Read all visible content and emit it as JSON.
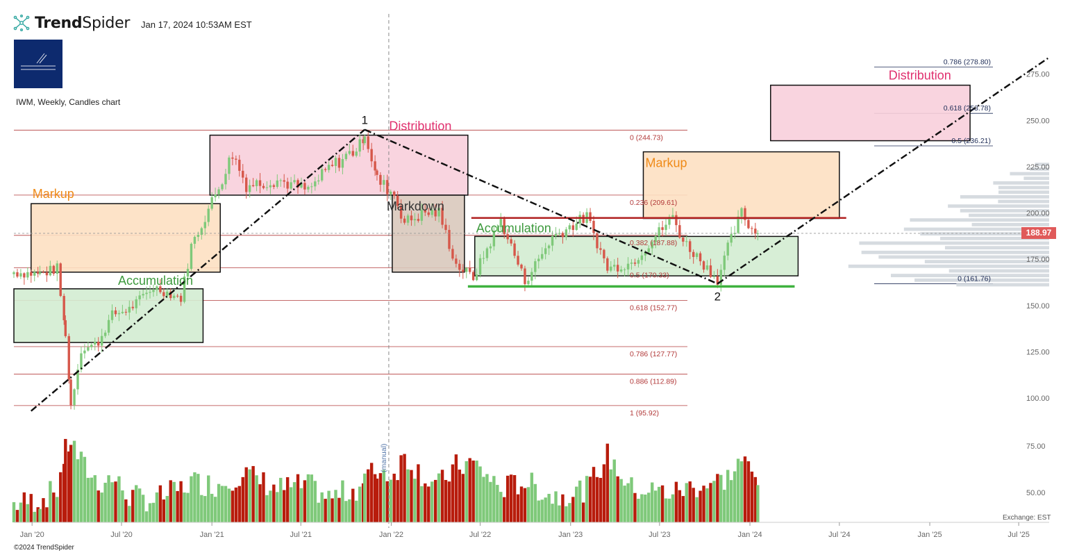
{
  "header": {
    "brand_bold": "Trend",
    "brand_light": "Spider",
    "timestamp": "Jan 17, 2024 10:53AM EST",
    "symbol_line": "IWM, Weekly, Candles chart",
    "copyright": "©2024 TrendSpider",
    "exchange": "Exchange: EST",
    "last_price": "188.97"
  },
  "colors": {
    "up": "#7fc97a",
    "down": "#b81c0c",
    "distribution_fill": "#f8cfdc",
    "markup_fill": "#fde0c2",
    "accumulation_fill": "#d3ecd2",
    "markdown_fill": "#d9c9bd",
    "fib_line": "#b23a3a",
    "fib_line_right": "#1f2d57",
    "distribution_text": "#e0306f",
    "markup_text": "#ef8a17",
    "accumulation_text": "#3d9a3d",
    "markdown_text": "#333333",
    "support": "#3fb23f",
    "resistance": "#b02020",
    "last_price_tag": "#e05a5a"
  },
  "chart_data": {
    "type": "candlestick",
    "symbol": "IWM",
    "interval": "Weekly",
    "ylim": [
      88,
      285
    ],
    "y_ticks": [
      100,
      125,
      150,
      175,
      200,
      225,
      250,
      275
    ],
    "y_tick_labels": [
      "100.00",
      "125.00",
      "150.00",
      "175.00",
      "200.00",
      "225.00",
      "250.00",
      "275.00"
    ],
    "volume_ticks": [
      50,
      75
    ],
    "volume_tick_labels": [
      "50.00",
      "75.00"
    ],
    "volume_ylim": [
      34,
      84
    ],
    "x_ticks": [
      "2020-01-01",
      "2020-07-01",
      "2021-01-01",
      "2021-07-01",
      "2022-01-01",
      "2022-07-01",
      "2023-01-01",
      "2023-07-01",
      "2024-01-01",
      "2024-07-01",
      "2025-01-01",
      "2025-07-01"
    ],
    "x_tick_labels": [
      "Jan '20",
      "Jul '20",
      "Jan '21",
      "Jul '21",
      "Jan '22",
      "Jul '22",
      "Jan '23",
      "Jul '23",
      "Jan '24",
      "Jul '24",
      "Jan '25",
      "Jul '25"
    ],
    "x_range": [
      "2019-11-25",
      "2025-09-01"
    ],
    "anchors": [
      [
        "2019-11-25",
        157,
        168,
        44
      ],
      [
        "2020-01-17",
        165,
        167,
        46
      ],
      [
        "2020-02-21",
        167,
        170,
        52
      ],
      [
        "2020-03-09",
        140,
        135,
        72
      ],
      [
        "2020-03-20",
        100,
        96,
        78
      ],
      [
        "2020-04-10",
        122,
        126,
        66
      ],
      [
        "2020-05-15",
        128,
        130,
        55
      ],
      [
        "2020-06-12",
        150,
        145,
        58
      ],
      [
        "2020-07-17",
        145,
        148,
        48
      ],
      [
        "2020-09-04",
        153,
        160,
        46
      ],
      [
        "2020-10-30",
        150,
        154,
        52
      ],
      [
        "2020-11-20",
        178,
        182,
        56
      ],
      [
        "2021-01-08",
        205,
        210,
        54
      ],
      [
        "2021-02-12",
        228,
        232,
        58
      ],
      [
        "2021-03-12",
        226,
        215,
        60
      ],
      [
        "2021-05-14",
        212,
        218,
        52
      ],
      [
        "2021-07-16",
        215,
        212,
        54
      ],
      [
        "2021-08-27",
        222,
        224,
        47
      ],
      [
        "2021-10-29",
        232,
        236,
        53
      ],
      [
        "2021-11-08",
        240,
        244,
        58
      ],
      [
        "2021-12-03",
        220,
        218,
        62
      ],
      [
        "2022-01-07",
        215,
        210,
        60
      ],
      [
        "2022-01-28",
        192,
        195,
        70
      ],
      [
        "2022-03-11",
        198,
        200,
        58
      ],
      [
        "2022-04-08",
        205,
        200,
        54
      ],
      [
        "2022-05-13",
        175,
        172,
        64
      ],
      [
        "2022-06-17",
        168,
        165,
        66
      ],
      [
        "2022-08-12",
        192,
        196,
        52
      ],
      [
        "2022-09-30",
        165,
        163,
        56
      ],
      [
        "2022-11-25",
        184,
        187,
        48
      ],
      [
        "2023-02-03",
        196,
        198,
        52
      ],
      [
        "2023-03-17",
        173,
        170,
        70
      ],
      [
        "2023-05-05",
        171,
        173,
        52
      ],
      [
        "2023-07-28",
        196,
        198,
        50
      ],
      [
        "2023-08-18",
        183,
        185,
        52
      ],
      [
        "2023-10-27",
        163,
        164,
        56
      ],
      [
        "2023-11-17",
        178,
        181,
        58
      ],
      [
        "2023-12-15",
        196,
        200,
        68
      ],
      [
        "2024-01-05",
        193,
        191,
        60
      ],
      [
        "2024-01-17",
        189,
        188.97,
        54
      ]
    ],
    "fib_levels_left": [
      {
        "label": "0 (244.73)",
        "value": 244.73
      },
      {
        "label": "0.236 (209.61)",
        "value": 209.61
      },
      {
        "label": "0.382 (187.88)",
        "value": 187.88
      },
      {
        "label": "0.5 (170.33)",
        "value": 170.33
      },
      {
        "label": "0.618 (152.77)",
        "value": 152.77
      },
      {
        "label": "0.786 (127.77)",
        "value": 127.77
      },
      {
        "label": "0.886 (112.89)",
        "value": 112.89
      },
      {
        "label": "1 (95.92)",
        "value": 95.92
      }
    ],
    "fib_levels_right": [
      {
        "label": "0.786 (278.80)",
        "value": 278.8
      },
      {
        "label": "0.618 (253.78)",
        "value": 253.78
      },
      {
        "label": "0.5 (236.21)",
        "value": 236.21
      },
      {
        "label": "0 (161.76)",
        "value": 161.76
      }
    ],
    "zones": [
      {
        "label": "Accumulation",
        "kind": "accumulation",
        "x0": "2019-11-25",
        "x1": "2020-12-14",
        "y0": 130,
        "y1": 159
      },
      {
        "label": "Markup",
        "kind": "markup",
        "x0": "2019-12-30",
        "x1": "2021-01-18",
        "y0": 168,
        "y1": 205
      },
      {
        "label": "Distribution",
        "kind": "distribution",
        "x0": "2020-12-28",
        "x1": "2022-06-06",
        "y0": 209.6,
        "y1": 242
      },
      {
        "label": "Markdown",
        "kind": "markdown",
        "x0": "2022-01-03",
        "x1": "2022-05-30",
        "y0": 168,
        "y1": 209.6
      },
      {
        "label": "Accumulation",
        "kind": "accumulation",
        "x0": "2022-06-20",
        "x1": "2024-04-08",
        "y0": 166,
        "y1": 187.3
      },
      {
        "label": "Markup",
        "kind": "markup",
        "x0": "2023-05-29",
        "x1": "2024-07-01",
        "y0": 197,
        "y1": 233
      },
      {
        "label": "Distribution",
        "kind": "distribution",
        "x0": "2024-02-12",
        "x1": "2025-03-24",
        "y0": 239,
        "y1": 269
      }
    ],
    "pivots": [
      {
        "label": "1",
        "date": "2021-11-08",
        "value": 244.73
      },
      {
        "label": "2",
        "date": "2023-10-27",
        "value": 161.76
      }
    ],
    "trendlines": [
      {
        "kind": "up",
        "from": [
          "2019-12-30",
          93
        ],
        "to": [
          "2021-11-08",
          245
        ]
      },
      {
        "kind": "down",
        "from": [
          "2021-11-08",
          245
        ],
        "to": [
          "2023-10-27",
          161.76
        ]
      },
      {
        "kind": "up",
        "from": [
          "2023-10-27",
          161.76
        ],
        "to": [
          "2025-09-01",
          284
        ]
      }
    ],
    "support_line": {
      "x0": "2022-06-06",
      "x1": "2024-04-01",
      "value": 160.3
    },
    "resistance_line": {
      "x0": "2022-06-13",
      "x1": "2024-07-15",
      "value": 197.3
    },
    "vertical_marker": {
      "date": "2021-12-27",
      "label": "(manual)"
    },
    "last_price": 188.97
  }
}
